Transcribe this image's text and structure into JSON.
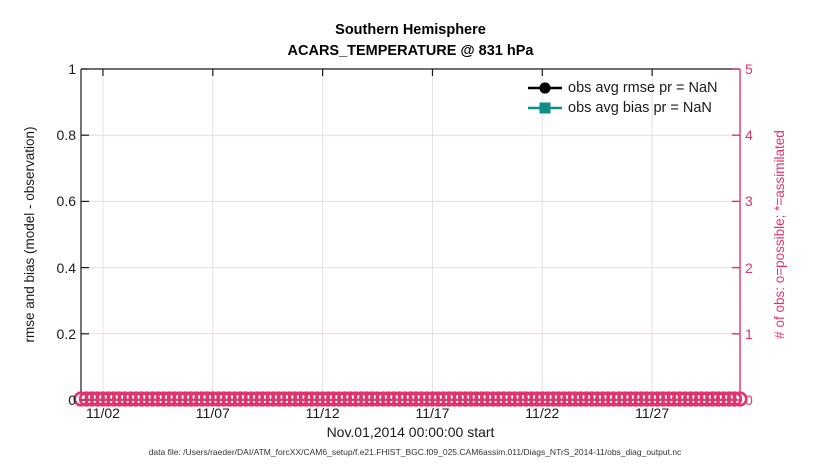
{
  "figure": {
    "caption": "data file: /Users/raeder/DAI/ATM_forcXX/CAM6_setup/f.e21.FHIST_BGC.f09_025.CAM6assim.011/Diags_NTrS_2014-11/obs_diag_output.nc"
  },
  "chart_data": {
    "type": "line",
    "title": "Southern Hemisphere",
    "subtitle": "ACARS_TEMPERATURE @ 831 hPa",
    "xlabel": "Nov.01,2014 00:00:00 start",
    "grid": true,
    "legend_position": "top-right-inside",
    "x_axis": {
      "range_days": [
        0,
        30
      ],
      "tick_days": [
        1,
        6,
        11,
        16,
        21,
        26
      ],
      "tick_labels": [
        "11/02",
        "11/07",
        "11/12",
        "11/17",
        "11/22",
        "11/27"
      ],
      "grid_color": "#e2e2e2",
      "color": "#1a1a1a"
    },
    "left_axis": {
      "label": "rmse and bias (model - observation)",
      "ylim": [
        0,
        1
      ],
      "ticks": [
        0,
        0.2,
        0.4,
        0.6,
        0.8,
        1
      ],
      "tick_labels": [
        "0",
        "0.2",
        "0.4",
        "0.6",
        "0.8",
        "1"
      ],
      "color": "#1a1a1a"
    },
    "right_axis": {
      "label": "# of obs: o=possible; *=assimilated",
      "ylim": [
        0,
        5
      ],
      "ticks": [
        0,
        1,
        2,
        3,
        4,
        5
      ],
      "tick_labels": [
        "0",
        "1",
        "2",
        "3",
        "4",
        "5"
      ],
      "color": "#e2336e",
      "grid_color": "#f8d2de"
    },
    "legend": [
      {
        "label": "obs avg rmse pr = NaN",
        "color": "#000000",
        "marker": "circle"
      },
      {
        "label": "obs avg bias pr = NaN",
        "color": "#0e8e89",
        "marker": "square"
      }
    ],
    "series": [
      {
        "name": "obs avg rmse pr",
        "axis": "left",
        "value": "NaN",
        "color": "#000000",
        "marker": "circle",
        "points": []
      },
      {
        "name": "obs avg bias pr",
        "axis": "left",
        "value": "NaN",
        "color": "#0e8e89",
        "marker": "square",
        "points": []
      },
      {
        "name": "# of obs possible",
        "axis": "right",
        "marker": "o",
        "color": "#e2336e",
        "count": 121,
        "constant_value": 0
      }
    ]
  }
}
